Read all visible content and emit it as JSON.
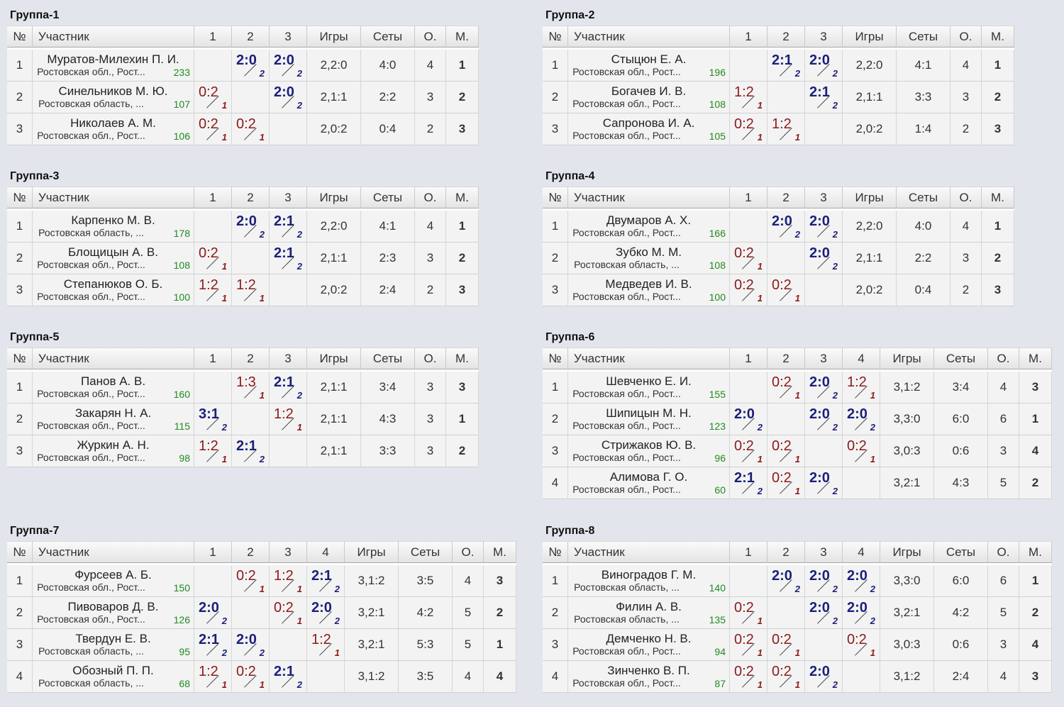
{
  "headers": {
    "no": "№",
    "participant": "Участник",
    "games": "Игры",
    "sets": "Сеты",
    "points": "О.",
    "place": "М."
  },
  "groups": [
    {
      "title": "Группа-1",
      "players": [
        {
          "n": "1",
          "name": "Муратов-Милехин П. И.",
          "region": "Ростовская обл., Рост...",
          "rating": "233",
          "results": [
            null,
            {
              "s": "2:0",
              "p": "2"
            },
            {
              "s": "2:0",
              "p": "2"
            }
          ],
          "games": "2,2:0",
          "sets": "4:0",
          "points": "4",
          "place": "1"
        },
        {
          "n": "2",
          "name": "Синельников М. Ю.",
          "region": "Ростовская область, ...",
          "rating": "107",
          "results": [
            {
              "s": "0:2",
              "p": "1"
            },
            null,
            {
              "s": "2:0",
              "p": "2"
            }
          ],
          "games": "2,1:1",
          "sets": "2:2",
          "points": "3",
          "place": "2"
        },
        {
          "n": "3",
          "name": "Николаев А. М.",
          "region": "Ростовская обл., Рост...",
          "rating": "106",
          "results": [
            {
              "s": "0:2",
              "p": "1"
            },
            {
              "s": "0:2",
              "p": "1"
            },
            null
          ],
          "games": "2,0:2",
          "sets": "0:4",
          "points": "2",
          "place": "3"
        }
      ]
    },
    {
      "title": "Группа-2",
      "players": [
        {
          "n": "1",
          "name": "Стыцюн Е. А.",
          "region": "Ростовская обл., Рост...",
          "rating": "196",
          "results": [
            null,
            {
              "s": "2:1",
              "p": "2"
            },
            {
              "s": "2:0",
              "p": "2"
            }
          ],
          "games": "2,2:0",
          "sets": "4:1",
          "points": "4",
          "place": "1"
        },
        {
          "n": "2",
          "name": "Богачев И. В.",
          "region": "Ростовская обл., Рост...",
          "rating": "108",
          "results": [
            {
              "s": "1:2",
              "p": "1"
            },
            null,
            {
              "s": "2:1",
              "p": "2"
            }
          ],
          "games": "2,1:1",
          "sets": "3:3",
          "points": "3",
          "place": "2"
        },
        {
          "n": "3",
          "name": "Сапронова И. А.",
          "region": "Ростовская обл., Рост...",
          "rating": "105",
          "results": [
            {
              "s": "0:2",
              "p": "1"
            },
            {
              "s": "1:2",
              "p": "1"
            },
            null
          ],
          "games": "2,0:2",
          "sets": "1:4",
          "points": "2",
          "place": "3"
        }
      ]
    },
    {
      "title": "Группа-3",
      "players": [
        {
          "n": "1",
          "name": "Карпенко М. В.",
          "region": "Ростовская область, ...",
          "rating": "178",
          "results": [
            null,
            {
              "s": "2:0",
              "p": "2"
            },
            {
              "s": "2:1",
              "p": "2"
            }
          ],
          "games": "2,2:0",
          "sets": "4:1",
          "points": "4",
          "place": "1"
        },
        {
          "n": "2",
          "name": "Блощицын А. В.",
          "region": "Ростовская обл., Рост...",
          "rating": "108",
          "results": [
            {
              "s": "0:2",
              "p": "1"
            },
            null,
            {
              "s": "2:1",
              "p": "2"
            }
          ],
          "games": "2,1:1",
          "sets": "2:3",
          "points": "3",
          "place": "2"
        },
        {
          "n": "3",
          "name": "Степанюков О. Б.",
          "region": "Ростовская обл., Рост...",
          "rating": "100",
          "results": [
            {
              "s": "1:2",
              "p": "1"
            },
            {
              "s": "1:2",
              "p": "1"
            },
            null
          ],
          "games": "2,0:2",
          "sets": "2:4",
          "points": "2",
          "place": "3"
        }
      ]
    },
    {
      "title": "Группа-4",
      "players": [
        {
          "n": "1",
          "name": "Двумаров А. Х.",
          "region": "Ростовская обл., Рост...",
          "rating": "166",
          "results": [
            null,
            {
              "s": "2:0",
              "p": "2"
            },
            {
              "s": "2:0",
              "p": "2"
            }
          ],
          "games": "2,2:0",
          "sets": "4:0",
          "points": "4",
          "place": "1"
        },
        {
          "n": "2",
          "name": "Зубко М. М.",
          "region": "Ростовская область, ...",
          "rating": "108",
          "results": [
            {
              "s": "0:2",
              "p": "1"
            },
            null,
            {
              "s": "2:0",
              "p": "2"
            }
          ],
          "games": "2,1:1",
          "sets": "2:2",
          "points": "3",
          "place": "2"
        },
        {
          "n": "3",
          "name": "Медведев И. В.",
          "region": "Ростовская обл., Рост...",
          "rating": "100",
          "results": [
            {
              "s": "0:2",
              "p": "1"
            },
            {
              "s": "0:2",
              "p": "1"
            },
            null
          ],
          "games": "2,0:2",
          "sets": "0:4",
          "points": "2",
          "place": "3"
        }
      ]
    },
    {
      "title": "Группа-5",
      "players": [
        {
          "n": "1",
          "name": "Панов А. В.",
          "region": "Ростовская обл., Рост...",
          "rating": "160",
          "results": [
            null,
            {
              "s": "1:3",
              "p": "1"
            },
            {
              "s": "2:1",
              "p": "2"
            }
          ],
          "games": "2,1:1",
          "sets": "3:4",
          "points": "3",
          "place": "3"
        },
        {
          "n": "2",
          "name": "Закарян Н. А.",
          "region": "Ростовская обл., Рост...",
          "rating": "115",
          "results": [
            {
              "s": "3:1",
              "p": "2"
            },
            null,
            {
              "s": "1:2",
              "p": "1"
            }
          ],
          "games": "2,1:1",
          "sets": "4:3",
          "points": "3",
          "place": "1"
        },
        {
          "n": "3",
          "name": "Журкин А. Н.",
          "region": "Ростовская обл., Рост...",
          "rating": "98",
          "results": [
            {
              "s": "1:2",
              "p": "1"
            },
            {
              "s": "2:1",
              "p": "2"
            },
            null
          ],
          "games": "2,1:1",
          "sets": "3:3",
          "points": "3",
          "place": "2"
        }
      ]
    },
    {
      "title": "Группа-6",
      "players": [
        {
          "n": "1",
          "name": "Шевченко Е. И.",
          "region": "Ростовская обл., Рост...",
          "rating": "155",
          "results": [
            null,
            {
              "s": "0:2",
              "p": "1"
            },
            {
              "s": "2:0",
              "p": "2"
            },
            {
              "s": "1:2",
              "p": "1"
            }
          ],
          "games": "3,1:2",
          "sets": "3:4",
          "points": "4",
          "place": "3"
        },
        {
          "n": "2",
          "name": "Шипицын М. Н.",
          "region": "Ростовская обл., Рост...",
          "rating": "123",
          "results": [
            {
              "s": "2:0",
              "p": "2"
            },
            null,
            {
              "s": "2:0",
              "p": "2"
            },
            {
              "s": "2:0",
              "p": "2"
            }
          ],
          "games": "3,3:0",
          "sets": "6:0",
          "points": "6",
          "place": "1"
        },
        {
          "n": "3",
          "name": "Стрижаков Ю. В.",
          "region": "Ростовская обл., Рост...",
          "rating": "96",
          "results": [
            {
              "s": "0:2",
              "p": "1"
            },
            {
              "s": "0:2",
              "p": "1"
            },
            null,
            {
              "s": "0:2",
              "p": "1"
            }
          ],
          "games": "3,0:3",
          "sets": "0:6",
          "points": "3",
          "place": "4"
        },
        {
          "n": "4",
          "name": "Алимова Г. О.",
          "region": "Ростовская обл., Рост...",
          "rating": "60",
          "results": [
            {
              "s": "2:1",
              "p": "2"
            },
            {
              "s": "0:2",
              "p": "1"
            },
            {
              "s": "2:0",
              "p": "2"
            },
            null
          ],
          "games": "3,2:1",
          "sets": "4:3",
          "points": "5",
          "place": "2"
        }
      ]
    },
    {
      "title": "Группа-7",
      "players": [
        {
          "n": "1",
          "name": "Фурсеев А. Б.",
          "region": "Ростовская обл., Рост...",
          "rating": "150",
          "results": [
            null,
            {
              "s": "0:2",
              "p": "1"
            },
            {
              "s": "1:2",
              "p": "1"
            },
            {
              "s": "2:1",
              "p": "2"
            }
          ],
          "games": "3,1:2",
          "sets": "3:5",
          "points": "4",
          "place": "3"
        },
        {
          "n": "2",
          "name": "Пивоваров Д. В.",
          "region": "Ростовская обл., Рост...",
          "rating": "126",
          "results": [
            {
              "s": "2:0",
              "p": "2"
            },
            null,
            {
              "s": "0:2",
              "p": "1"
            },
            {
              "s": "2:0",
              "p": "2"
            }
          ],
          "games": "3,2:1",
          "sets": "4:2",
          "points": "5",
          "place": "2"
        },
        {
          "n": "3",
          "name": "Твердун Е. В.",
          "region": "Ростовская область, ...",
          "rating": "95",
          "results": [
            {
              "s": "2:1",
              "p": "2"
            },
            {
              "s": "2:0",
              "p": "2"
            },
            null,
            {
              "s": "1:2",
              "p": "1"
            }
          ],
          "games": "3,2:1",
          "sets": "5:3",
          "points": "5",
          "place": "1"
        },
        {
          "n": "4",
          "name": "Обозный П. П.",
          "region": "Ростовская область, ...",
          "rating": "68",
          "results": [
            {
              "s": "1:2",
              "p": "1"
            },
            {
              "s": "0:2",
              "p": "1"
            },
            {
              "s": "2:1",
              "p": "2"
            },
            null
          ],
          "games": "3,1:2",
          "sets": "3:5",
          "points": "4",
          "place": "4"
        }
      ]
    },
    {
      "title": "Группа-8",
      "players": [
        {
          "n": "1",
          "name": "Виноградов Г. М.",
          "region": "Ростовская область, ...",
          "rating": "140",
          "results": [
            null,
            {
              "s": "2:0",
              "p": "2"
            },
            {
              "s": "2:0",
              "p": "2"
            },
            {
              "s": "2:0",
              "p": "2"
            }
          ],
          "games": "3,3:0",
          "sets": "6:0",
          "points": "6",
          "place": "1"
        },
        {
          "n": "2",
          "name": "Филин А. В.",
          "region": "Ростовская область, ...",
          "rating": "135",
          "results": [
            {
              "s": "0:2",
              "p": "1"
            },
            null,
            {
              "s": "2:0",
              "p": "2"
            },
            {
              "s": "2:0",
              "p": "2"
            }
          ],
          "games": "3,2:1",
          "sets": "4:2",
          "points": "5",
          "place": "2"
        },
        {
          "n": "3",
          "name": "Демченко Н. В.",
          "region": "Ростовская обл., Рост...",
          "rating": "94",
          "results": [
            {
              "s": "0:2",
              "p": "1"
            },
            {
              "s": "0:2",
              "p": "1"
            },
            null,
            {
              "s": "0:2",
              "p": "1"
            }
          ],
          "games": "3,0:3",
          "sets": "0:6",
          "points": "3",
          "place": "4"
        },
        {
          "n": "4",
          "name": "Зинченко В. П.",
          "region": "Ростовская обл., Рост...",
          "rating": "87",
          "results": [
            {
              "s": "0:2",
              "p": "1"
            },
            {
              "s": "0:2",
              "p": "1"
            },
            {
              "s": "2:0",
              "p": "2"
            },
            null
          ],
          "games": "3,1:2",
          "sets": "2:4",
          "points": "4",
          "place": "3"
        }
      ]
    }
  ]
}
